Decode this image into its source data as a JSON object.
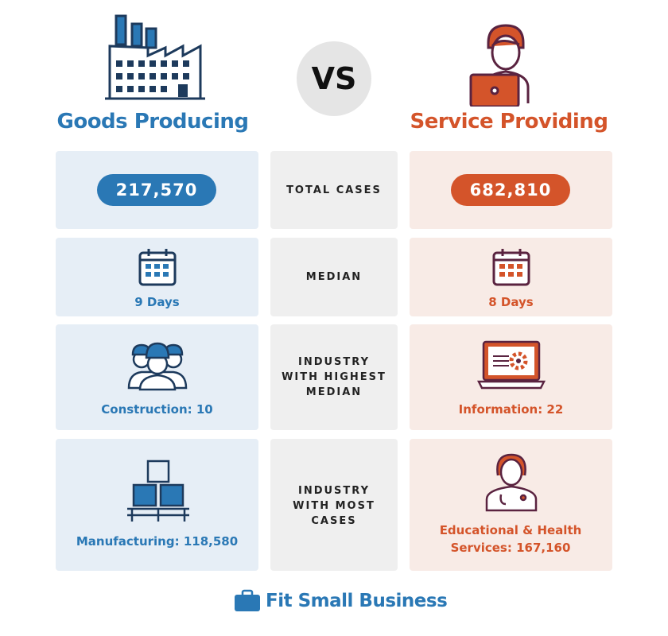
{
  "header": {
    "left_title": "Goods Producing",
    "vs": "VS",
    "right_title": "Service Providing"
  },
  "rows": [
    {
      "label": "TOTAL CASES",
      "left": "217,570",
      "right": "682,810"
    },
    {
      "label": "MEDIAN",
      "left": "9 Days",
      "right": "8 Days"
    },
    {
      "label": "INDUSTRY WITH HIGHEST MEDIAN",
      "left": "Construction: 10",
      "right": "Information: 22"
    },
    {
      "label": "INDUSTRY WITH MOST CASES",
      "left": "Manufacturing: 118,580",
      "right": "Educational & Health Services: 167,160"
    }
  ],
  "footer": {
    "brand": "Fit Small Business"
  }
}
